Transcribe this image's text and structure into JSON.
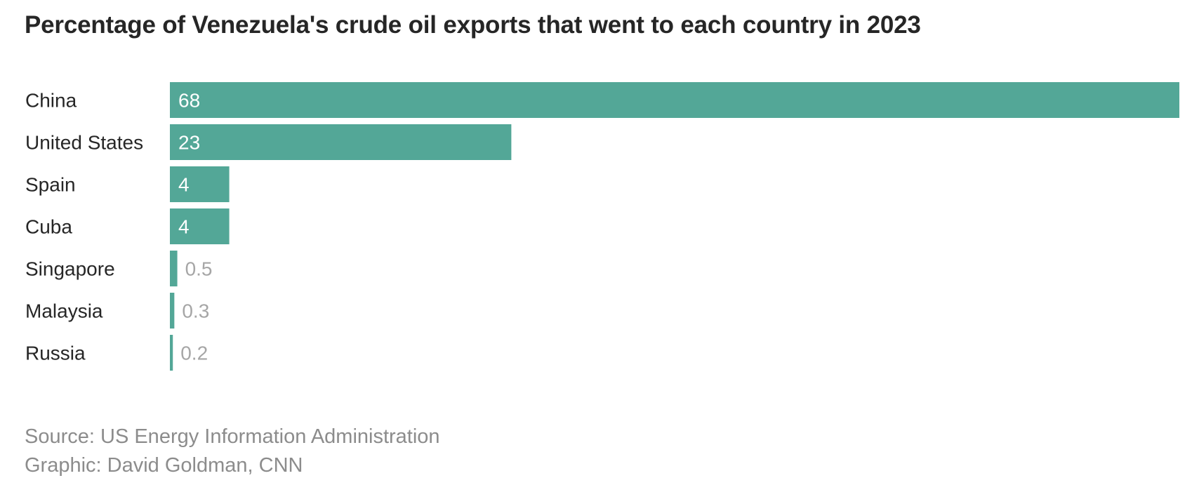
{
  "chart_data": {
    "type": "bar",
    "orientation": "horizontal",
    "title": "Percentage of Venezuela's crude oil exports that went to each country in 2023",
    "categories": [
      "China",
      "United States",
      "Spain",
      "Cuba",
      "Singapore",
      "Malaysia",
      "Russia"
    ],
    "values": [
      68,
      23,
      4,
      4,
      0.5,
      0.3,
      0.2
    ],
    "value_labels": [
      "68",
      "23",
      "4",
      "4",
      "0.5",
      "0.3",
      "0.2"
    ],
    "xlim": [
      0,
      68
    ],
    "grid": false,
    "legend": "none",
    "colors": {
      "bar": "#53a797",
      "label_inside": "#ffffff",
      "label_outside": "#a6a6a6",
      "category_text": "#262626"
    }
  },
  "footer": {
    "source": "Source: US Energy Information Administration",
    "credit": "Graphic: David Goldman, CNN"
  }
}
